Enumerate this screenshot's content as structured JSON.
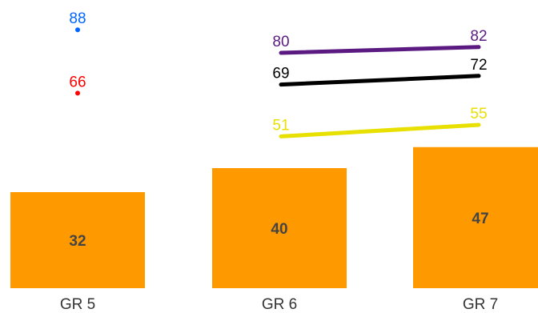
{
  "chart_data": {
    "type": "bar",
    "categories": [
      "GR 5",
      "GR 6",
      "GR 7"
    ],
    "bar_series": {
      "values": [
        32,
        40,
        47
      ],
      "color": "#ff9900"
    },
    "line_series": [
      {
        "values": [
          88,
          null,
          null
        ],
        "color": "#0066ff"
      },
      {
        "values": [
          66,
          null,
          null
        ],
        "color": "#ff0000"
      },
      {
        "values": [
          null,
          80,
          82
        ],
        "color": "#5b1a82"
      },
      {
        "values": [
          null,
          69,
          72
        ],
        "color": "#000000"
      },
      {
        "values": [
          null,
          51,
          55
        ],
        "color": "#e8e000"
      }
    ],
    "grid": false,
    "legend": "none"
  }
}
